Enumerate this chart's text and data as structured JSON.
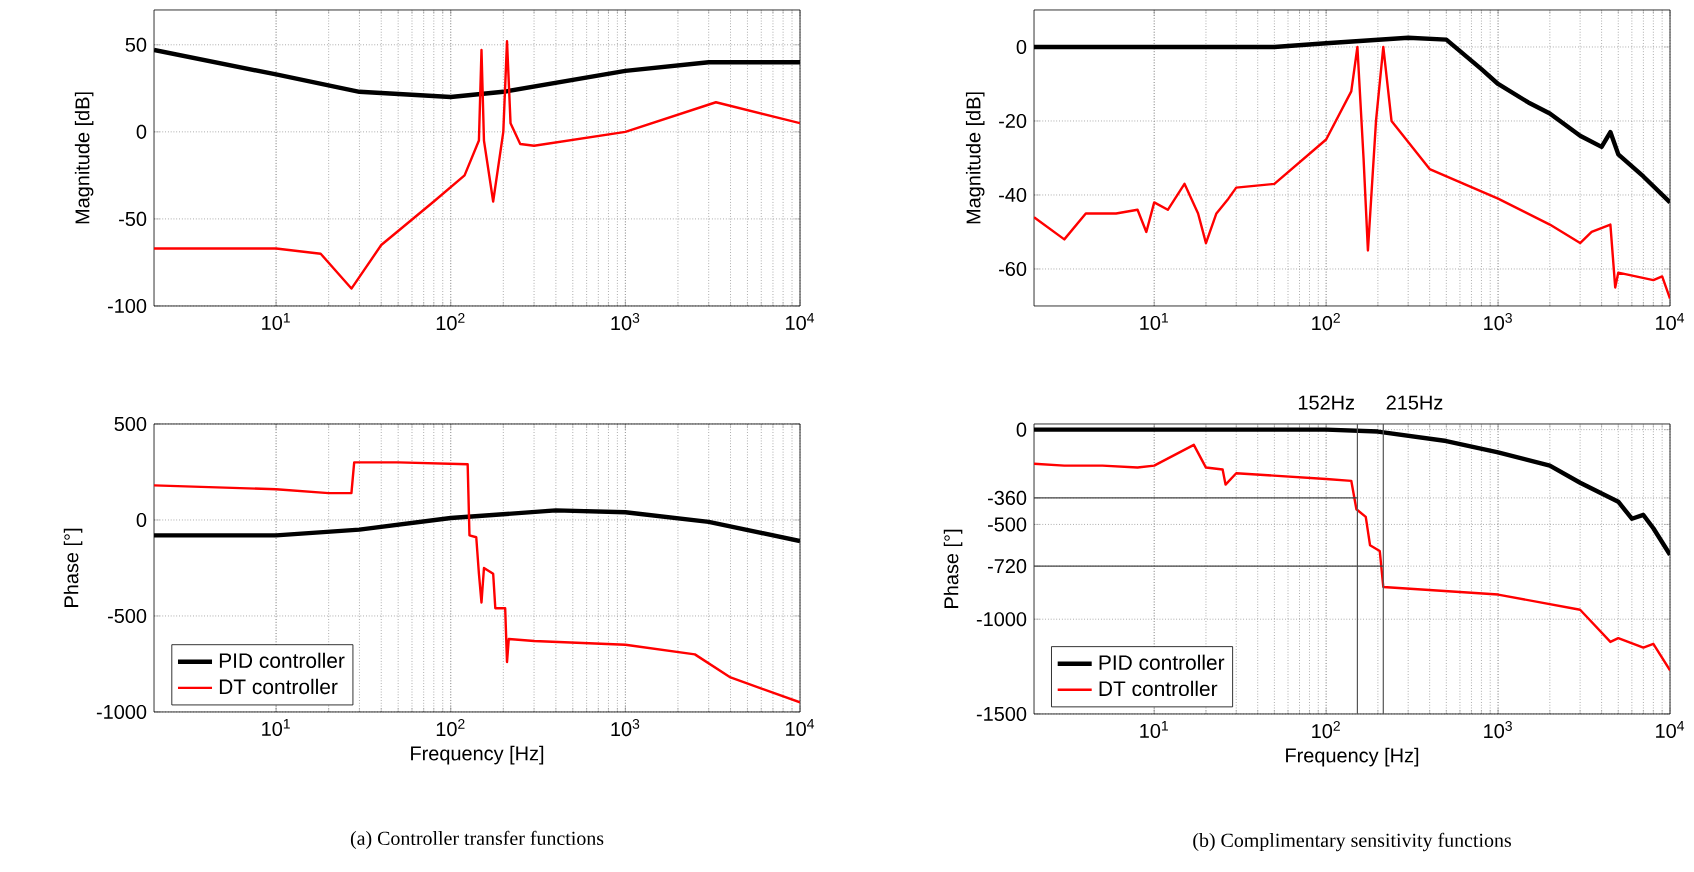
{
  "chart_data": [
    {
      "type": "line",
      "ylabel": "Magnitude [dB]",
      "log": "x",
      "grid": true,
      "xlim": [
        2,
        10000
      ],
      "ylim": [
        -100,
        70
      ],
      "xticks": [
        {
          "value": 10,
          "label": "10$^{1}$"
        },
        {
          "value": 100,
          "label": "10$^{2}$"
        },
        {
          "value": 1000,
          "label": "10$^{3}$"
        },
        {
          "value": 10000,
          "label": "10$^{4}$"
        }
      ],
      "yticks": [
        -100,
        -50,
        0,
        50
      ],
      "series": [
        {
          "color": "#000000",
          "x": [
            2,
            10,
            30,
            100,
            200,
            1000,
            3000,
            10000
          ],
          "values": [
            47,
            33,
            23,
            20,
            23,
            35,
            40,
            40
          ]
        },
        {
          "color": "#ff0000",
          "x": [
            2,
            10,
            18,
            27,
            40,
            80,
            120,
            145,
            150,
            155,
            175,
            200,
            210,
            220,
            250,
            300,
            1000,
            3300,
            10000
          ],
          "values": [
            -67,
            -67,
            -70,
            -90,
            -65,
            -40,
            -25,
            -5,
            47,
            -5,
            -40,
            0,
            52,
            5,
            -7,
            -8,
            0,
            17,
            5
          ]
        }
      ]
    },
    {
      "type": "line",
      "ylabel": "Magnitude [dB]",
      "log": "x",
      "grid": true,
      "xlim": [
        2,
        10000
      ],
      "ylim": [
        -70,
        10
      ],
      "xticks": [
        {
          "value": 10,
          "label": "10$^{1}$"
        },
        {
          "value": 100,
          "label": "10$^{2}$"
        },
        {
          "value": 1000,
          "label": "10$^{3}$"
        },
        {
          "value": 10000,
          "label": "10$^{4}$"
        }
      ],
      "yticks": [
        -60,
        -40,
        -20,
        0
      ],
      "series": [
        {
          "color": "#000000",
          "x": [
            2,
            50,
            100,
            300,
            500,
            800,
            1000,
            1500,
            2000,
            3000,
            4000,
            4500,
            5000,
            7000,
            10000
          ],
          "values": [
            0,
            0,
            1,
            2.5,
            2,
            -6,
            -10,
            -15,
            -18,
            -24,
            -27,
            -23,
            -29,
            -35,
            -42
          ]
        },
        {
          "color": "#ff0000",
          "x": [
            2,
            3,
            4,
            6,
            8,
            9,
            10,
            12,
            15,
            18,
            20,
            23,
            27,
            30,
            50,
            100,
            140,
            152,
            165,
            175,
            195,
            215,
            240,
            400,
            1000,
            2000,
            3000,
            3500,
            4500,
            4800,
            5000,
            8000,
            9000,
            10000
          ],
          "values": [
            -46,
            -52,
            -45,
            -45,
            -44,
            -50,
            -42,
            -44,
            -37,
            -45,
            -53,
            -45,
            -41,
            -38,
            -37,
            -25,
            -12,
            0,
            -30,
            -55,
            -20,
            0,
            -20,
            -33,
            -41,
            -48,
            -53,
            -50,
            -48,
            -65,
            -61,
            -63,
            -62,
            -68
          ]
        }
      ]
    },
    {
      "type": "line",
      "xlabel": "Frequency [Hz]",
      "ylabel": "Phase [°]",
      "log": "x",
      "grid": true,
      "legend": "bottom left",
      "xlim": [
        2,
        10000
      ],
      "ylim": [
        -1000,
        500
      ],
      "xticks": [
        {
          "value": 10,
          "label": "10$^{1}$"
        },
        {
          "value": 100,
          "label": "10$^{2}$"
        },
        {
          "value": 1000,
          "label": "10$^{3}$"
        },
        {
          "value": 10000,
          "label": "10$^{4}$"
        }
      ],
      "yticks": [
        -1000,
        -500,
        0,
        500
      ],
      "annotations": [
        "(a)  Controller transfer functions"
      ],
      "series": [
        {
          "name": "PID controller",
          "color": "#000000",
          "x": [
            2,
            10,
            30,
            100,
            400,
            1000,
            3000,
            10000
          ],
          "values": [
            -80,
            -80,
            -50,
            10,
            50,
            40,
            -10,
            -110
          ]
        },
        {
          "name": "DT controller",
          "color": "#ff0000",
          "x": [
            2,
            10,
            20,
            27,
            28,
            50,
            125,
            128,
            140,
            145,
            150,
            155,
            175,
            180,
            205,
            210,
            215,
            300,
            1000,
            2500,
            4000,
            10000
          ],
          "values": [
            180,
            160,
            140,
            140,
            300,
            300,
            290,
            -80,
            -90,
            -280,
            -430,
            -250,
            -280,
            -460,
            -460,
            -740,
            -620,
            -630,
            -650,
            -700,
            -820,
            -950
          ]
        }
      ]
    },
    {
      "type": "line",
      "xlabel": "Frequency [Hz]",
      "ylabel": "Phase [°]",
      "log": "x",
      "grid": true,
      "legend": "bottom left",
      "xlim": [
        2,
        10000
      ],
      "ylim": [
        -1500,
        30
      ],
      "xticks": [
        {
          "value": 10,
          "label": "10$^{1}$"
        },
        {
          "value": 100,
          "label": "10$^{2}$"
        },
        {
          "value": 1000,
          "label": "10$^{3}$"
        },
        {
          "value": 10000,
          "label": "10$^{4}$"
        }
      ],
      "yticks": [
        -1500,
        -1000,
        -720,
        -500,
        -360,
        0
      ],
      "annotations": [
        "(b)  Complimentary sensitivity functions"
      ],
      "ref_lines": [
        {
          "axis": "x",
          "value": 152,
          "label": "152Hz",
          "color": "#555555"
        },
        {
          "axis": "x",
          "value": 215,
          "label": "215Hz",
          "color": "#555555"
        },
        {
          "axis": "y",
          "value": -360,
          "color": "#444444"
        },
        {
          "axis": "y",
          "value": -720,
          "color": "#444444"
        }
      ],
      "series": [
        {
          "name": "PID controller",
          "color": "#000000",
          "x": [
            2,
            100,
            200,
            500,
            1000,
            2000,
            3000,
            5000,
            6000,
            7000,
            8000,
            10000
          ],
          "values": [
            0,
            0,
            -10,
            -60,
            -120,
            -190,
            -280,
            -380,
            -470,
            -450,
            -520,
            -660
          ]
        },
        {
          "name": "DT controller",
          "color": "#ff0000",
          "x": [
            2,
            3,
            5,
            8,
            10,
            17,
            20,
            25,
            26,
            30,
            100,
            140,
            150,
            170,
            180,
            205,
            215,
            1000,
            3000,
            4500,
            5000,
            7000,
            8000,
            10000
          ],
          "values": [
            -180,
            -190,
            -190,
            -200,
            -190,
            -80,
            -200,
            -210,
            -290,
            -230,
            -260,
            -270,
            -420,
            -460,
            -610,
            -640,
            -830,
            -870,
            -950,
            -1120,
            -1100,
            -1150,
            -1130,
            -1270
          ]
        }
      ]
    }
  ]
}
